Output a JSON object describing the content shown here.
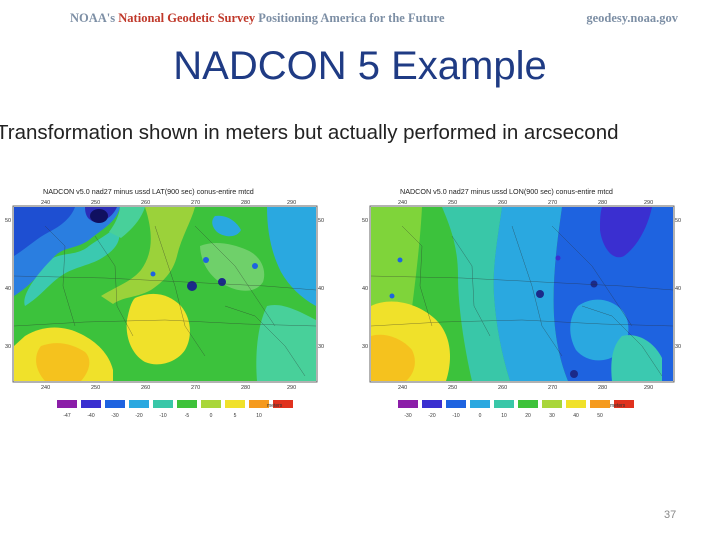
{
  "header": {
    "org_prefix": "NOAA's",
    "org_name": "National Geodetic Survey",
    "tagline": "Positioning America for the Future",
    "url": "geodesy.noaa.gov"
  },
  "slide": {
    "title": "NADCON 5 Example",
    "subtitle": "Transformation shown in meters but actually performed in arcsecond",
    "page_number": "37"
  },
  "maps": [
    {
      "title": "NADCON v5.0 nad27 minus ussd LAT(900 sec) conus-entire mtcd",
      "lon_ticks": [
        "240",
        "250",
        "260",
        "270",
        "280",
        "290"
      ],
      "lat_ticks": [
        "50",
        "40",
        "30"
      ],
      "legend_unit": "meters",
      "legend_labels": [
        "-47",
        "-40",
        "-30",
        "-20",
        "-10",
        "-5",
        "0",
        "5",
        "10"
      ],
      "legend_colors": [
        "#8b1ea8",
        "#3a2fd0",
        "#1e63e0",
        "#2aa8e0",
        "#39c7a8",
        "#3ec23a",
        "#a9d63a",
        "#f0e12a",
        "#f59a1e",
        "#e0321e"
      ]
    },
    {
      "title": "NADCON v5.0 nad27 minus ussd LON(900 sec) conus-entire mtcd",
      "lon_ticks": [
        "240",
        "250",
        "260",
        "270",
        "280",
        "290"
      ],
      "lat_ticks": [
        "50",
        "40",
        "30"
      ],
      "legend_unit": "meters",
      "legend_labels": [
        "-30",
        "-20",
        "-10",
        "0",
        "10",
        "20",
        "30",
        "40",
        "50"
      ],
      "legend_colors": [
        "#8b1ea8",
        "#3a2fd0",
        "#1e63e0",
        "#2aa8e0",
        "#39c7a8",
        "#3ec23a",
        "#a9d63a",
        "#f0e12a",
        "#f59a1e",
        "#e0321e"
      ]
    }
  ]
}
